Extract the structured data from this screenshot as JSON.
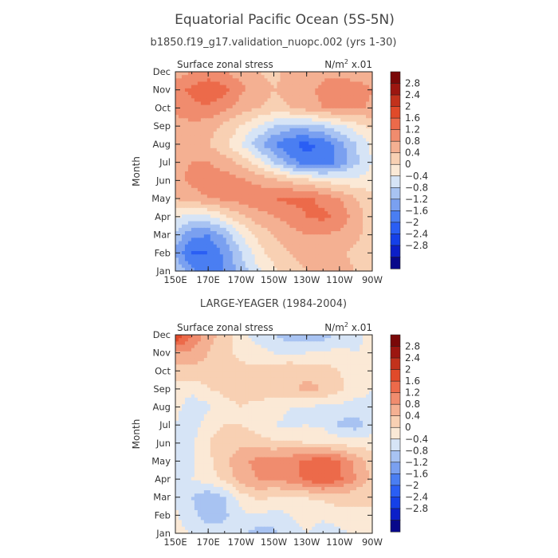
{
  "figure": {
    "title": "Equatorial Pacific Ocean (5S-5N)",
    "subtitle": "b1850.f19_g17.validation_nuopc.002 (yrs 1-30)"
  },
  "colors": {
    "levels": [
      -3.2,
      -2.8,
      -2.4,
      -2.0,
      -1.6,
      -1.2,
      -0.8,
      -0.4,
      0,
      0.4,
      0.8,
      1.2,
      1.6,
      2.0,
      2.4,
      2.8,
      3.2
    ],
    "palette": [
      "#08088a",
      "#0c1fc8",
      "#1540e8",
      "#2a5ef4",
      "#4a7ef2",
      "#7aa0f0",
      "#a8c3f2",
      "#d6e4f6",
      "#fbe9d6",
      "#f8d0b3",
      "#f4b092",
      "#f08c6e",
      "#ec6a4a",
      "#e04a2a",
      "#c2321c",
      "#9c1610",
      "#7a0808"
    ]
  },
  "chart_data": [
    {
      "type": "heatmap",
      "panel_label": "Surface zonal stress",
      "units_text": "N/m",
      "units_sup": "2",
      "units_scale": "x.01",
      "ylabel": "Month",
      "xlabel": "",
      "x_tick_labels": [
        "150E",
        "170E",
        "170W",
        "150W",
        "130W",
        "110W",
        "90W"
      ],
      "y_tick_labels": [
        "Jan",
        "Feb",
        "Mar",
        "Apr",
        "May",
        "Jun",
        "Jul",
        "Aug",
        "Sep",
        "Oct",
        "Nov",
        "Dec"
      ],
      "x_lon": [
        150,
        160,
        170,
        180,
        190,
        200,
        210,
        220,
        230,
        240,
        250,
        260,
        270
      ],
      "y_month": [
        "Jan",
        "Feb",
        "Mar",
        "Apr",
        "May",
        "Jun",
        "Jul",
        "Aug",
        "Sep",
        "Oct",
        "Nov",
        "Dec"
      ],
      "z": [
        [
          -0.8,
          -1.5,
          -1.9,
          -1.6,
          -1.0,
          -0.5,
          -0.1,
          0.2,
          0.4,
          0.5,
          0.5,
          0.4,
          0.2
        ],
        [
          -1.3,
          -2.1,
          -2.0,
          -1.5,
          -0.8,
          -0.2,
          0.2,
          0.4,
          0.6,
          0.6,
          0.5,
          0.3,
          0.1
        ],
        [
          -0.9,
          -1.5,
          -1.6,
          -1.1,
          -0.4,
          0.1,
          0.4,
          0.6,
          0.8,
          0.8,
          0.7,
          0.5,
          0.2
        ],
        [
          -0.3,
          -0.6,
          -0.5,
          -0.1,
          0.3,
          0.6,
          0.8,
          1.0,
          1.2,
          1.3,
          1.1,
          0.6,
          0.2
        ],
        [
          0.4,
          0.6,
          0.8,
          0.9,
          1.0,
          1.1,
          1.2,
          1.3,
          1.3,
          1.1,
          0.8,
          0.4,
          0.1
        ],
        [
          0.7,
          0.9,
          1.0,
          1.0,
          0.9,
          0.7,
          0.5,
          0.3,
          0.1,
          -0.1,
          -0.2,
          -0.3,
          -0.2
        ],
        [
          0.7,
          0.8,
          0.8,
          0.6,
          0.3,
          -0.2,
          -0.8,
          -1.4,
          -1.9,
          -1.9,
          -1.5,
          -0.9,
          -0.4
        ],
        [
          0.4,
          0.5,
          0.4,
          0.1,
          -0.4,
          -1.0,
          -1.6,
          -2.0,
          -2.1,
          -1.9,
          -1.4,
          -0.8,
          -0.3
        ],
        [
          0.6,
          0.7,
          0.6,
          0.3,
          0.0,
          -0.4,
          -0.8,
          -1.0,
          -1.0,
          -0.8,
          -0.5,
          -0.2,
          0.1
        ],
        [
          0.9,
          1.1,
          1.1,
          0.9,
          0.6,
          0.4,
          0.3,
          0.4,
          0.6,
          0.8,
          0.9,
          0.9,
          0.7
        ],
        [
          1.0,
          1.3,
          1.6,
          1.3,
          0.9,
          0.6,
          0.4,
          0.5,
          0.7,
          0.9,
          1.0,
          1.0,
          0.8
        ],
        [
          0.6,
          0.8,
          0.9,
          0.8,
          0.6,
          0.4,
          0.3,
          0.5,
          0.6,
          0.7,
          0.7,
          0.6,
          0.5
        ]
      ],
      "colorbar_labels": [
        "2.8",
        "2.4",
        "2",
        "1.6",
        "1.2",
        "0.8",
        "0.4",
        "0",
        "-0.4",
        "-0.8",
        "-1.2",
        "-1.6",
        "-2",
        "-2.4",
        "-2.8"
      ]
    },
    {
      "type": "heatmap",
      "title": "LARGE-YEAGER (1984-2004)",
      "panel_label": "Surface zonal stress",
      "units_text": "N/m",
      "units_sup": "2",
      "units_scale": "x.01",
      "ylabel": "Month",
      "xlabel": "",
      "x_tick_labels": [
        "150E",
        "170E",
        "170W",
        "150W",
        "130W",
        "110W",
        "90W"
      ],
      "y_tick_labels": [
        "Jan",
        "Feb",
        "Mar",
        "Apr",
        "May",
        "Jun",
        "Jul",
        "Aug",
        "Sep",
        "Oct",
        "Nov",
        "Dec"
      ],
      "x_lon": [
        150,
        160,
        170,
        180,
        190,
        200,
        210,
        220,
        230,
        240,
        250,
        260,
        270
      ],
      "y_month": [
        "Jan",
        "Feb",
        "Mar",
        "Apr",
        "May",
        "Jun",
        "Jul",
        "Aug",
        "Sep",
        "Oct",
        "Nov",
        "Dec"
      ],
      "z": [
        [
          -0.3,
          -0.4,
          -0.6,
          -0.6,
          -0.7,
          -1.0,
          -0.9,
          -0.6,
          -0.4,
          -0.6,
          -0.5,
          -0.3,
          -0.2
        ],
        [
          -0.3,
          -0.7,
          -1.0,
          -0.9,
          -0.5,
          -0.4,
          -0.6,
          -0.4,
          -0.2,
          -0.3,
          -0.2,
          -0.1,
          0.0
        ],
        [
          -0.5,
          -0.8,
          -1.1,
          -0.8,
          -0.2,
          0.1,
          0.0,
          -0.1,
          0.0,
          0.1,
          0.2,
          0.1,
          0.0
        ],
        [
          -0.4,
          -0.4,
          -0.2,
          0.1,
          0.6,
          0.8,
          0.8,
          1.0,
          1.3,
          1.6,
          1.3,
          0.8,
          0.3
        ],
        [
          -0.5,
          -0.5,
          -0.1,
          0.3,
          0.7,
          0.9,
          1.0,
          1.1,
          1.3,
          1.5,
          1.2,
          0.7,
          0.2
        ],
        [
          -0.6,
          -0.5,
          0.0,
          0.2,
          0.3,
          0.2,
          0.1,
          0.1,
          0.0,
          0.0,
          -0.1,
          -0.2,
          -0.2
        ],
        [
          -0.4,
          -0.6,
          -0.2,
          0.0,
          0.0,
          -0.2,
          -0.4,
          -0.5,
          -0.4,
          -0.5,
          -0.9,
          -1.0,
          -0.6
        ],
        [
          -0.3,
          -0.6,
          -0.5,
          -0.1,
          0.0,
          -0.1,
          -0.2,
          -0.4,
          -0.4,
          -0.5,
          -0.5,
          -0.6,
          -0.5
        ],
        [
          -0.2,
          -0.3,
          0.0,
          0.1,
          0.1,
          0.2,
          0.2,
          0.3,
          0.5,
          0.4,
          0.1,
          -0.2,
          -0.4
        ],
        [
          0.2,
          0.3,
          0.2,
          0.2,
          0.1,
          0.1,
          0.3,
          0.4,
          0.3,
          0.2,
          0.0,
          -0.2,
          -0.3
        ],
        [
          0.8,
          0.7,
          0.4,
          0.1,
          -0.1,
          -0.2,
          -0.4,
          -0.5,
          -0.4,
          -0.3,
          -0.3,
          -0.4,
          -0.3
        ],
        [
          2.0,
          1.2,
          0.6,
          0.2,
          -0.3,
          -0.6,
          -0.8,
          -1.0,
          -1.1,
          -1.0,
          -0.7,
          -0.5,
          -0.3
        ]
      ],
      "colorbar_labels": [
        "2.8",
        "2.4",
        "2",
        "1.6",
        "1.2",
        "0.8",
        "0.4",
        "0",
        "-0.4",
        "-0.8",
        "-1.2",
        "-1.6",
        "-2",
        "-2.4",
        "-2.8"
      ]
    }
  ]
}
